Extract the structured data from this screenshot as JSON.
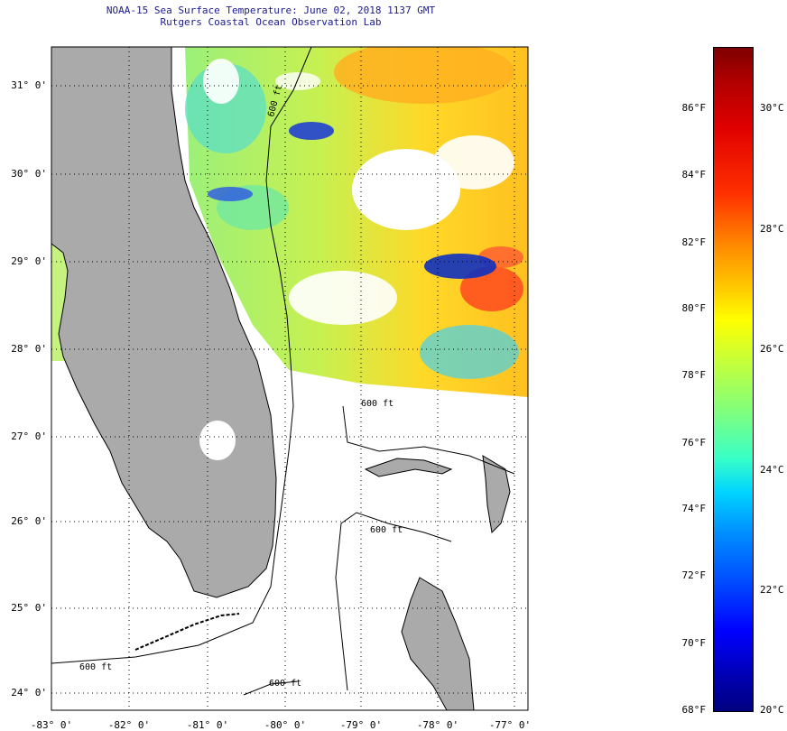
{
  "title": {
    "line1": "NOAA-15 Sea Surface Temperature:  June 02, 2018 1137 GMT",
    "line2": "Rutgers Coastal Ocean Observation Lab"
  },
  "map": {
    "lat_labels": [
      "31° 0'",
      "30° 0'",
      "29° 0'",
      "28° 0'",
      "27° 0'",
      "26° 0'",
      "25° 0'",
      "24° 0'"
    ],
    "lon_labels": [
      "-83° 0'",
      "-82° 0'",
      "-81° 0'",
      "-80° 0'",
      "-79° 0'",
      "-78° 0'",
      "-77° 0'"
    ],
    "contour_labels": [
      "600 ft",
      "600 ft",
      "600 ft",
      "600 ft",
      "600 ft"
    ],
    "colors": {
      "land": "#aaaaaa",
      "coastline": "#000000",
      "water_nodata": "#ffffff"
    }
  },
  "colorbar": {
    "fahrenheit_labels": [
      "86°F",
      "84°F",
      "82°F",
      "80°F",
      "78°F",
      "76°F",
      "74°F",
      "72°F",
      "70°F",
      "68°F"
    ],
    "celsius_labels": [
      "30°C",
      "28°C",
      "26°C",
      "24°C",
      "22°C",
      "20°C"
    ],
    "colors_top_to_bottom": [
      "#7f0000",
      "#e00000",
      "#ff8c00",
      "#ffff00",
      "#7fff7f",
      "#00d4ff",
      "#0050ff",
      "#00007f"
    ]
  }
}
